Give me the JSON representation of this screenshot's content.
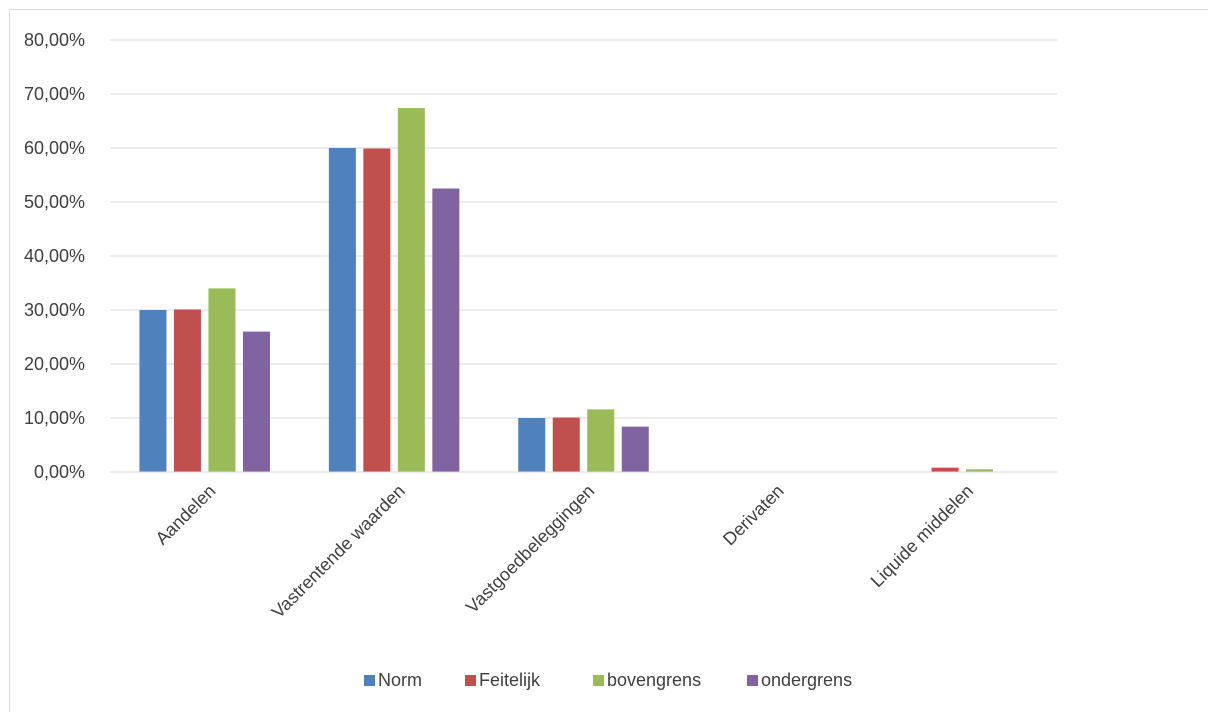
{
  "chart_data": {
    "type": "bar",
    "categories": [
      "Aandelen",
      "Vastrentende waarden",
      "Vastgoedbeleggingen",
      "Derivaten",
      "Liquide middelen"
    ],
    "series": [
      {
        "name": "Norm",
        "color": "#4f81bd",
        "values": [
          0.3,
          0.6,
          0.1,
          0.0,
          0.0
        ]
      },
      {
        "name": "Feitelijk",
        "color": "#c0504d",
        "values": [
          0.301,
          0.599,
          0.101,
          0.0,
          0.008
        ]
      },
      {
        "name": "bovengrens",
        "color": "#9bbb59",
        "values": [
          0.34,
          0.674,
          0.116,
          0.0,
          0.005
        ]
      },
      {
        "name": "ondergrens",
        "color": "#8064a2",
        "values": [
          0.26,
          0.525,
          0.084,
          0.0,
          0.0
        ]
      }
    ],
    "y_ticks": [
      "0,00%",
      "10,00%",
      "20,00%",
      "30,00%",
      "40,00%",
      "50,00%",
      "60,00%",
      "70,00%",
      "80,00%"
    ],
    "ylim": [
      0,
      0.8
    ],
    "grid": true,
    "gridline_color": "#d9d9d9",
    "legend_position": "bottom"
  }
}
